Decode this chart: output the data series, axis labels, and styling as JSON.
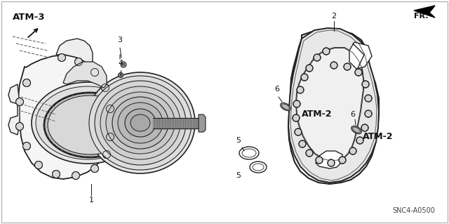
{
  "figsize": [
    6.4,
    3.19
  ],
  "dpi": 100,
  "background_color": "#ffffff",
  "line_color": "#222222",
  "text_color": "#111111",
  "diagram_code": "SNC4-A0500",
  "atm3_label": "ATM-3",
  "fr_label": "FR.",
  "atm2_label": "ATM-2",
  "num1": "1",
  "num2": "2",
  "num3": "3",
  "num4": "4",
  "num5": "5",
  "num6": "6"
}
